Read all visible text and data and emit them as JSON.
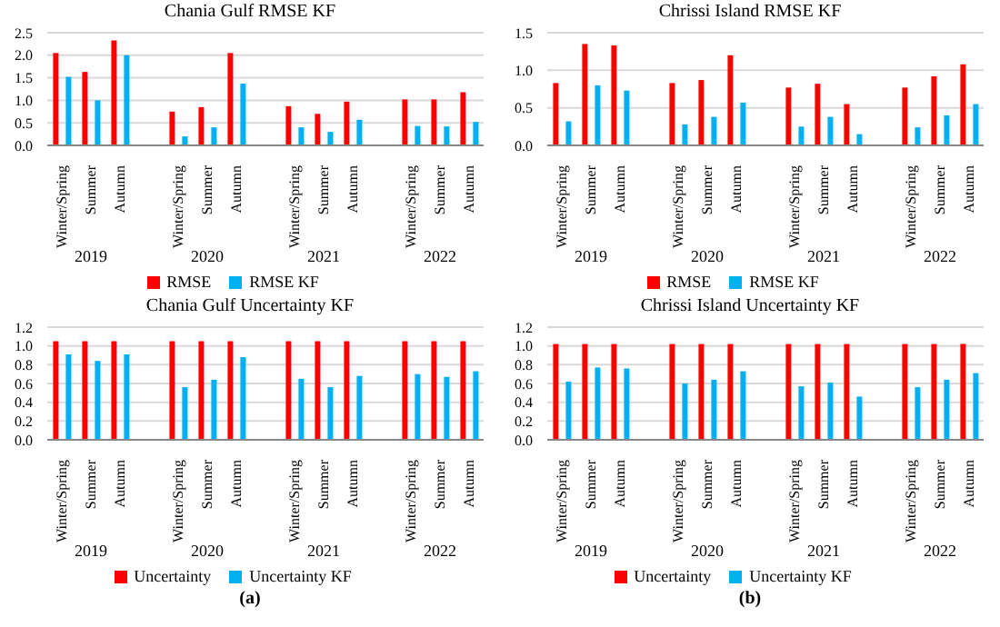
{
  "chart_data": [
    {
      "type": "bar",
      "title": "Chania Gulf RMSE KF",
      "categories": [
        "Winter/Spring",
        "Summer",
        "Autumn",
        null,
        "Winter/Spring",
        "Summer",
        "Autumn",
        null,
        "Winter/Spring",
        "Summer",
        "Autumn",
        null,
        "Winter/Spring",
        "Summer",
        "Autumn"
      ],
      "series": [
        {
          "name": "RMSE",
          "color": "#ff0000",
          "values": [
            2.05,
            1.63,
            2.33,
            null,
            0.75,
            0.85,
            2.05,
            null,
            0.87,
            0.7,
            0.97,
            null,
            1.02,
            1.02,
            1.18
          ]
        },
        {
          "name": "RMSE KF",
          "color": "#00b0f0",
          "values": [
            1.52,
            1.0,
            2.0,
            null,
            0.2,
            0.4,
            1.37,
            null,
            0.4,
            0.3,
            0.57,
            null,
            0.43,
            0.42,
            0.52
          ]
        }
      ],
      "ylim": [
        0,
        2.5
      ],
      "yticks": [
        {
          "value": 0,
          "label": "0.0"
        },
        {
          "value": 0.5,
          "label": "0.5"
        },
        {
          "value": 1,
          "label": "1.0"
        },
        {
          "value": 1.5,
          "label": "1.5"
        },
        {
          "value": 2,
          "label": "2.0"
        },
        {
          "value": 2.5,
          "label": "2.5"
        }
      ],
      "grid": "y",
      "legend": "bottom",
      "annotations": [
        "2019",
        "2020",
        "2021",
        "2022"
      ]
    },
    {
      "type": "bar",
      "title": "Chrissi Island RMSE KF",
      "categories": [
        "Winter/Spring",
        "Summer",
        "Autumn",
        null,
        "Winter/Spring",
        "Summer",
        "Autumn",
        null,
        "Winter/Spring",
        "Summer",
        "Autumn",
        null,
        "Winter/Spring",
        "Summer",
        "Autumn"
      ],
      "series": [
        {
          "name": "RMSE",
          "color": "#ff0000",
          "values": [
            0.83,
            1.35,
            1.33,
            null,
            0.83,
            0.87,
            1.2,
            null,
            0.77,
            0.82,
            0.55,
            null,
            0.77,
            0.92,
            1.08
          ]
        },
        {
          "name": "RMSE KF",
          "color": "#00b0f0",
          "values": [
            0.32,
            0.8,
            0.73,
            null,
            0.28,
            0.38,
            0.57,
            null,
            0.25,
            0.38,
            0.15,
            null,
            0.24,
            0.4,
            0.55
          ]
        }
      ],
      "ylim": [
        0,
        1.5
      ],
      "yticks": [
        {
          "value": 0,
          "label": "0.0"
        },
        {
          "value": 0.5,
          "label": "0.5"
        },
        {
          "value": 1,
          "label": "1.0"
        },
        {
          "value": 1.5,
          "label": "1.5"
        }
      ],
      "grid": "y",
      "legend": "bottom",
      "annotations": [
        "2019",
        "2020",
        "2021",
        "2022"
      ]
    },
    {
      "type": "bar",
      "title": "Chania Gulf Uncertainty KF",
      "categories": [
        "Winter/Spring",
        "Summer",
        "Autumn",
        null,
        "Winter/Spring",
        "Summer",
        "Autumn",
        null,
        "Winter/Spring",
        "Summer",
        "Autumn",
        null,
        "Winter/Spring",
        "Summer",
        "Autumn"
      ],
      "series": [
        {
          "name": "Uncertainty",
          "color": "#ff0000",
          "values": [
            1.05,
            1.05,
            1.05,
            null,
            1.05,
            1.05,
            1.05,
            null,
            1.05,
            1.05,
            1.05,
            null,
            1.05,
            1.05,
            1.05
          ]
        },
        {
          "name": "Uncertainty KF",
          "color": "#00b0f0",
          "values": [
            0.91,
            0.84,
            0.91,
            null,
            0.56,
            0.64,
            0.88,
            null,
            0.65,
            0.56,
            0.68,
            null,
            0.7,
            0.67,
            0.73
          ]
        }
      ],
      "ylim": [
        0,
        1.2
      ],
      "yticks": [
        {
          "value": 0,
          "label": "0.0"
        },
        {
          "value": 0.2,
          "label": "0.2"
        },
        {
          "value": 0.4,
          "label": "0.4"
        },
        {
          "value": 0.6,
          "label": "0.6"
        },
        {
          "value": 0.8,
          "label": "0.8"
        },
        {
          "value": 1,
          "label": "1.0"
        },
        {
          "value": 1.2,
          "label": "1.2"
        }
      ],
      "grid": "y",
      "legend": "bottom",
      "annotations": [
        "2019",
        "2020",
        "2021",
        "2022",
        "(a)"
      ]
    },
    {
      "type": "bar",
      "title": "Chrissi Island Uncertainty KF",
      "categories": [
        "Winter/Spring",
        "Summer",
        "Autumn",
        null,
        "Winter/Spring",
        "Summer",
        "Autumn",
        null,
        "Winter/Spring",
        "Summer",
        "Autumn",
        null,
        "Winter/Spring",
        "Summer",
        "Autumn"
      ],
      "series": [
        {
          "name": "Uncertainty",
          "color": "#ff0000",
          "values": [
            1.02,
            1.02,
            1.02,
            null,
            1.02,
            1.02,
            1.02,
            null,
            1.02,
            1.02,
            1.02,
            null,
            1.02,
            1.02,
            1.02
          ]
        },
        {
          "name": "Uncertainty KF",
          "color": "#00b0f0",
          "values": [
            0.62,
            0.77,
            0.76,
            null,
            0.6,
            0.64,
            0.73,
            null,
            0.57,
            0.61,
            0.46,
            null,
            0.56,
            0.64,
            0.71
          ]
        }
      ],
      "ylim": [
        0,
        1.2
      ],
      "yticks": [
        {
          "value": 0,
          "label": "0.0"
        },
        {
          "value": 0.2,
          "label": "0.2"
        },
        {
          "value": 0.4,
          "label": "0.4"
        },
        {
          "value": 0.6,
          "label": "0.6"
        },
        {
          "value": 0.8,
          "label": "0.8"
        },
        {
          "value": 1,
          "label": "1.0"
        },
        {
          "value": 1.2,
          "label": "1.2"
        }
      ],
      "grid": "y",
      "legend": "bottom",
      "annotations": [
        "2019",
        "2020",
        "2021",
        "2022",
        "(b)"
      ]
    }
  ]
}
